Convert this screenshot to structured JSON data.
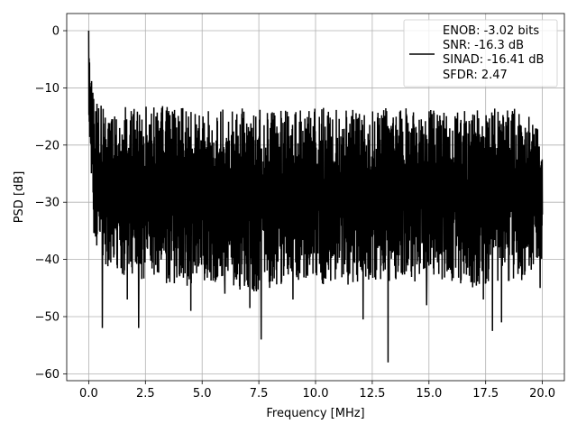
{
  "chart_data": {
    "type": "line",
    "title": "",
    "xlabel": "Frequency [MHz]",
    "ylabel": "PSD [dB]",
    "xlim": [
      -0.97,
      20.97
    ],
    "ylim": [
      -61.2,
      3.0
    ],
    "xticks": [
      0.0,
      2.5,
      5.0,
      7.5,
      10.0,
      12.5,
      15.0,
      17.5,
      20.0
    ],
    "xtick_labels": [
      "0.0",
      "2.5",
      "5.0",
      "7.5",
      "10.0",
      "12.5",
      "15.0",
      "17.5",
      "20.0"
    ],
    "yticks": [
      0,
      -10,
      -20,
      -30,
      -40,
      -50,
      -60
    ],
    "ytick_labels": [
      "0",
      "−10",
      "−20",
      "−30",
      "−40",
      "−50",
      "−60"
    ],
    "grid": true,
    "legend_position": "top-right",
    "legend_lines": [
      "ENOB: -3.02 bits",
      "SNR: -16.3 dB",
      "SINAD: -16.41 dB",
      "SFDR: 2.47"
    ],
    "series_color": "#000000",
    "series": [
      {
        "x_range": [
          0.0,
          20.0
        ],
        "envelope": {
          "x": [
            0.0,
            0.03,
            0.06,
            0.1,
            0.15,
            0.2,
            0.3,
            0.5,
            1.0,
            2.0,
            3.0,
            4.0,
            5.0,
            6.0,
            7.0,
            8.0,
            9.0,
            10.0,
            11.0,
            12.0,
            13.0,
            14.0,
            15.0,
            16.0,
            17.0,
            18.0,
            19.0,
            20.0
          ],
          "max": [
            0.0,
            -2.0,
            -4.0,
            -6.5,
            -8.5,
            -10.0,
            -11.5,
            -12.0,
            -13.0,
            -13.5,
            -13.0,
            -13.5,
            -13.5,
            -13.5,
            -13.5,
            -14.0,
            -13.5,
            -13.5,
            -13.5,
            -14.0,
            -13.5,
            -13.5,
            -13.5,
            -14.0,
            -14.0,
            -13.5,
            -13.0,
            -17.5
          ],
          "min": [
            -13.0,
            -20.0,
            -24.0,
            -26.0,
            -28.0,
            -35.0,
            -38.0,
            -40.0,
            -42.0,
            -45.0,
            -44.0,
            -45.0,
            -44.0,
            -44.0,
            -46.0,
            -45.0,
            -44.0,
            -44.0,
            -45.0,
            -44.0,
            -44.0,
            -44.0,
            -44.0,
            -44.0,
            -45.0,
            -44.0,
            -44.0,
            -41.0
          ]
        },
        "deep_minima": [
          {
            "x": 0.6,
            "y": -52.0
          },
          {
            "x": 1.7,
            "y": -47.0
          },
          {
            "x": 2.2,
            "y": -52.0
          },
          {
            "x": 4.5,
            "y": -49.0
          },
          {
            "x": 6.0,
            "y": -46.0
          },
          {
            "x": 7.1,
            "y": -48.5
          },
          {
            "x": 7.6,
            "y": -54.0
          },
          {
            "x": 9.0,
            "y": -47.0
          },
          {
            "x": 12.1,
            "y": -50.5
          },
          {
            "x": 13.2,
            "y": -58.0
          },
          {
            "x": 14.9,
            "y": -48.0
          },
          {
            "x": 17.4,
            "y": -47.0
          },
          {
            "x": 17.8,
            "y": -52.5
          },
          {
            "x": 18.2,
            "y": -51.0
          },
          {
            "x": 19.9,
            "y": -45.0
          }
        ]
      }
    ]
  }
}
